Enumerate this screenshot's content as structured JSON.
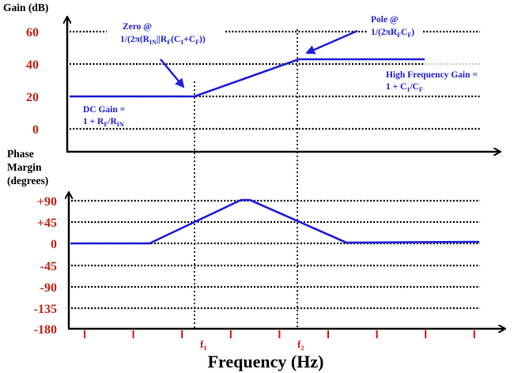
{
  "gain_plot": {
    "y_title": "Gain (dB)",
    "y_ticks": [
      "60",
      "40",
      "20",
      "0"
    ],
    "annotations": {
      "zero_line1": "Zero @",
      "zero_line2": [
        "1/(2π(R",
        "IN",
        "||R",
        "F",
        "(C",
        "1",
        "+C",
        "F",
        "))"
      ],
      "pole_line1": "Pole @",
      "pole_line2": [
        "1/(2πR",
        "F",
        "C",
        "F",
        ")"
      ],
      "hf_line1": "High Frequency Gain =",
      "hf_line2": [
        "1 + C",
        "1",
        "/C",
        "F"
      ],
      "dc_line1": "DC Gain =",
      "dc_line2": [
        "1 + R",
        "F",
        "/R",
        "IN"
      ]
    }
  },
  "phase_plot": {
    "y_title": [
      "Phase",
      "Margin",
      "(degrees)"
    ],
    "y_ticks": [
      "+90",
      "+45",
      "0",
      "-45",
      "-90",
      "-135",
      "-180"
    ]
  },
  "x_axis": {
    "title": "Frequency (Hz)",
    "f1": [
      "f",
      "1"
    ],
    "f2": [
      "f",
      "2"
    ],
    "tick_count": 9
  },
  "chart_data": {
    "type": "line",
    "gain_series": {
      "name": "Gain (dB)",
      "points": [
        [
          "low",
          20
        ],
        [
          "f1",
          20
        ],
        [
          "f2",
          43
        ],
        [
          "high",
          43
        ]
      ]
    },
    "phase_series": {
      "name": "Phase Margin (degrees)",
      "points": [
        [
          "low",
          0
        ],
        [
          "0.1·f1",
          0
        ],
        [
          "sqrt(f1·f2)",
          90
        ],
        [
          "10·f2",
          0
        ],
        [
          "high",
          2
        ]
      ]
    },
    "gain_ylim": [
      0,
      60
    ],
    "phase_ylim": [
      -180,
      90
    ],
    "colors": {
      "curve": "#1f1fdc",
      "tick_labels": "#c0281a",
      "x_ticks": "#e01010"
    }
  }
}
